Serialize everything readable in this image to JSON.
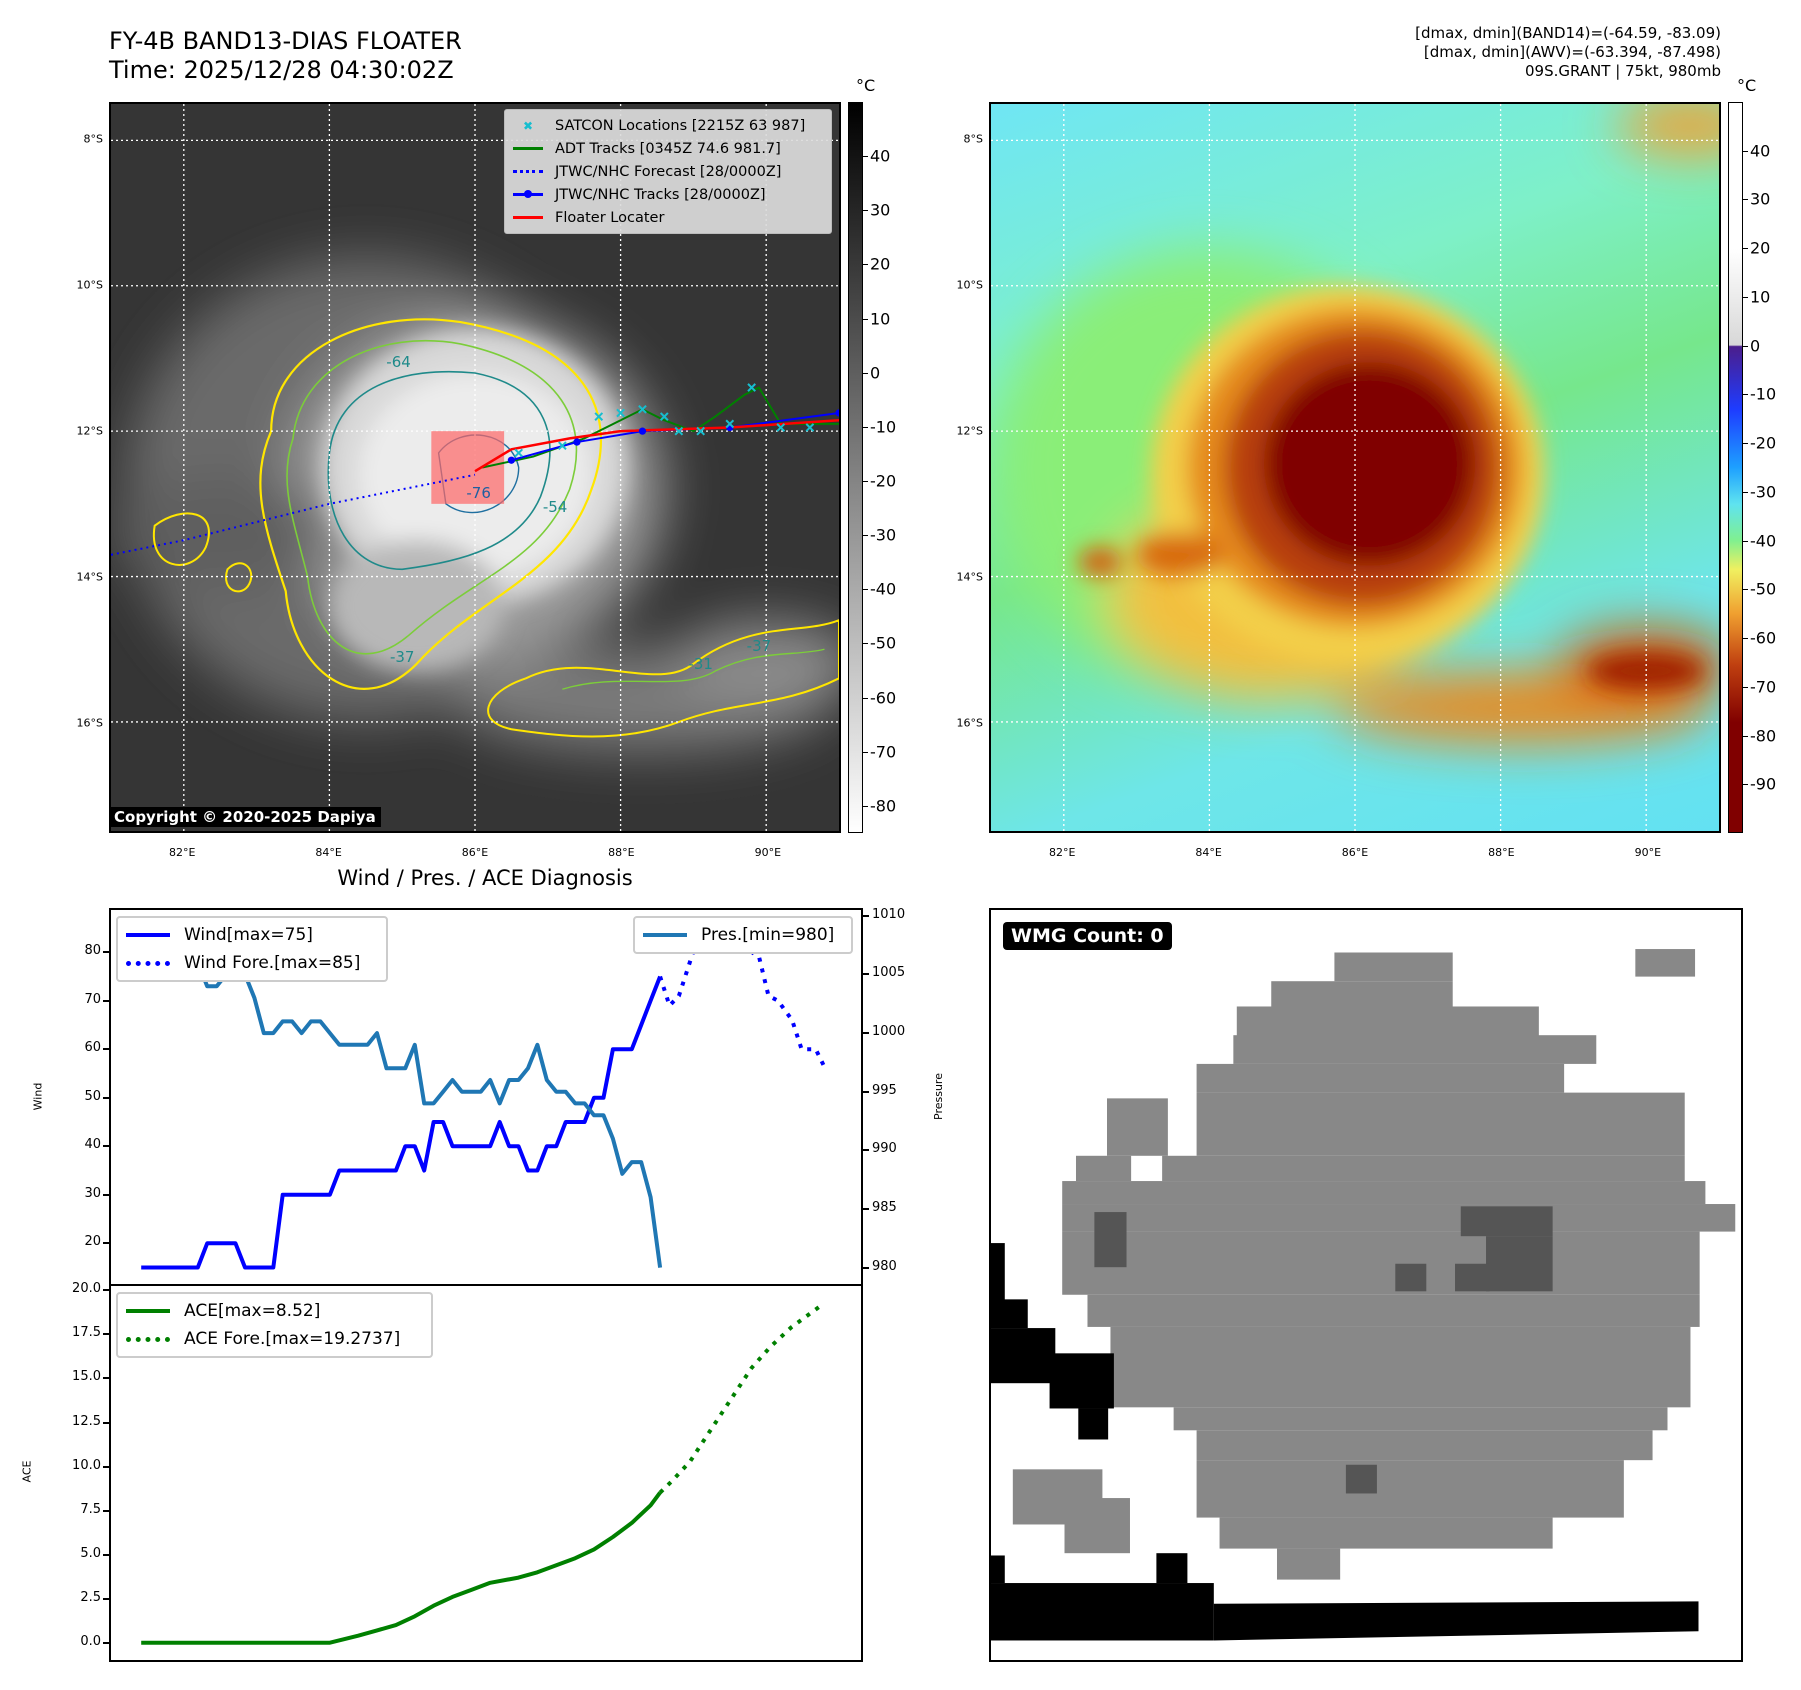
{
  "header": {
    "title_line1": "FY-4B BAND13-DIAS FLOATER",
    "title_line2": "Time: 2025/12/28 04:30:02Z",
    "stats_line1": "[dmax, dmin](BAND14)=(-64.59, -83.09)",
    "stats_line2": "[dmax, dmin](AWV)=(-63.394, -87.498)",
    "stats_line3": "09S.GRANT | 75kt, 980mb"
  },
  "map": {
    "lon_range": [
      81,
      91
    ],
    "lat_range": [
      -7.5,
      -17.5
    ],
    "lat_labels": [
      "8°S",
      "10°S",
      "12°S",
      "14°S",
      "16°S"
    ],
    "lat_values": [
      -8,
      -10,
      -12,
      -14,
      -16
    ],
    "lon_labels": [
      "82°E",
      "84°E",
      "86°E",
      "88°E",
      "90°E"
    ],
    "lon_values": [
      82,
      84,
      86,
      88,
      90
    ],
    "copyright": "Copyright © 2020-2025 Dapiya",
    "unit": "°C",
    "legend": [
      {
        "label": "SATCON Locations [2215Z 63 987]",
        "color": "#17becf",
        "style": "x"
      },
      {
        "label": "ADT Tracks [0345Z 74.6 981.7]",
        "color": "#008000",
        "style": "solid"
      },
      {
        "label": "JTWC/NHC Forecast [28/0000Z]",
        "color": "#0000ff",
        "style": "dotted"
      },
      {
        "label": "JTWC/NHC Tracks [28/0000Z]",
        "color": "#0000ff",
        "style": "marker"
      },
      {
        "label": "Floater Locater",
        "color": "#ff0000",
        "style": "solid"
      }
    ],
    "contour_labels": [
      {
        "text": "-64",
        "lon": 84.95,
        "lat": -11.05
      },
      {
        "text": "-76",
        "lon": 86.05,
        "lat": -12.85
      },
      {
        "text": "-54",
        "lon": 87.1,
        "lat": -13.05
      },
      {
        "text": "-37",
        "lon": 89.9,
        "lat": -14.95
      },
      {
        "text": "-31",
        "lon": 89.1,
        "lat": -15.2
      },
      {
        "text": "-37",
        "lon": 85.0,
        "lat": -15.1
      }
    ],
    "jtwc_forecast": [
      [
        81.0,
        -13.7
      ],
      [
        82,
        -13.5
      ],
      [
        83,
        -13.25
      ],
      [
        84,
        -13.0
      ],
      [
        85,
        -12.8
      ],
      [
        86,
        -12.6
      ]
    ],
    "jtwc_tracks": [
      [
        86.5,
        -12.4
      ],
      [
        87.4,
        -12.15
      ],
      [
        88.3,
        -12.0
      ],
      [
        89.5,
        -11.95
      ],
      [
        91,
        -11.75
      ]
    ],
    "floater_track": [
      [
        86.0,
        -12.55
      ],
      [
        86.5,
        -12.25
      ],
      [
        87.3,
        -12.1
      ],
      [
        88,
        -12.0
      ],
      [
        89.5,
        -11.95
      ],
      [
        91,
        -11.85
      ]
    ],
    "adt_track": [
      [
        86.1,
        -12.5
      ],
      [
        86.8,
        -12.35
      ],
      [
        87.5,
        -12.1
      ],
      [
        88.0,
        -11.85
      ],
      [
        88.3,
        -11.7
      ],
      [
        88.6,
        -11.85
      ],
      [
        89.0,
        -12.0
      ],
      [
        89.3,
        -11.8
      ],
      [
        89.7,
        -11.5
      ],
      [
        89.9,
        -11.4
      ],
      [
        90.2,
        -11.9
      ],
      [
        91,
        -11.9
      ]
    ],
    "satcon_points": [
      [
        86.6,
        -12.3
      ],
      [
        87.2,
        -12.2
      ],
      [
        87.7,
        -11.8
      ],
      [
        88.0,
        -11.75
      ],
      [
        88.3,
        -11.7
      ],
      [
        88.6,
        -11.8
      ],
      [
        88.8,
        -12.0
      ],
      [
        89.1,
        -12.0
      ],
      [
        89.5,
        -11.9
      ],
      [
        89.8,
        -11.4
      ],
      [
        90.2,
        -11.95
      ],
      [
        90.6,
        -11.95
      ]
    ],
    "floater_box": {
      "lon": [
        85.4,
        86.4
      ],
      "lat": [
        -12.0,
        -13.0
      ]
    },
    "left_colorbar": {
      "ticks": [
        40,
        30,
        20,
        10,
        0,
        -10,
        -20,
        -30,
        -40,
        -50,
        -60,
        -70,
        -80
      ],
      "range": [
        -85,
        50
      ]
    },
    "right_colorbar": {
      "ticks": [
        40,
        30,
        20,
        10,
        0,
        -10,
        -20,
        -30,
        -40,
        -50,
        -60,
        -70,
        -80,
        -90
      ],
      "range": [
        -100,
        50
      ]
    }
  },
  "chart_data": [
    {
      "type": "line",
      "title": "Wind / Pres. / ACE Diagnosis",
      "ylabel": "Wind",
      "y2label": "Pressure",
      "xlim": [
        -3.2,
        76.3
      ],
      "ylim": [
        11.6,
        88.7
      ],
      "y2lim": [
        978.6,
        1010.5
      ],
      "yticks": [
        20,
        30,
        40,
        50,
        60,
        70,
        80
      ],
      "y2ticks": [
        980,
        985,
        990,
        995,
        1000,
        1005,
        1010
      ],
      "series": [
        {
          "name": "Wind[max=75]",
          "axis": "left",
          "color": "#0000ff",
          "style": "solid",
          "x": [
            0,
            1,
            2,
            3,
            4,
            5,
            6,
            7,
            8,
            9,
            10,
            11,
            12,
            13,
            14,
            15,
            16,
            17,
            18,
            19,
            20,
            21,
            22,
            23,
            24,
            25,
            26,
            27,
            28,
            29,
            30,
            31,
            32,
            33,
            34,
            35,
            36,
            37,
            38,
            39,
            40,
            41,
            42,
            43,
            44,
            45,
            46,
            47,
            48,
            49,
            50,
            51,
            52,
            53,
            54,
            55
          ],
          "y": [
            15,
            15,
            15,
            15,
            15,
            15,
            15,
            20,
            20,
            20,
            20,
            15,
            15,
            15,
            15,
            30,
            30,
            30,
            30,
            30,
            30,
            35,
            35,
            35,
            35,
            35,
            35,
            35,
            40,
            40,
            35,
            45,
            45,
            40,
            40,
            40,
            40,
            40,
            45,
            40,
            40,
            35,
            35,
            40,
            40,
            45,
            45,
            45,
            50,
            50,
            60,
            60,
            60,
            65,
            70,
            75
          ]
        },
        {
          "name": "Wind Fore.[max=85]",
          "axis": "left",
          "color": "#0000ff",
          "style": "dotted",
          "x": [
            55,
            56,
            57,
            58.5,
            60,
            61.5,
            64,
            65.5,
            66.5,
            67.5,
            69,
            70,
            71.5,
            72.5
          ],
          "y": [
            75,
            69,
            71,
            80,
            83,
            85,
            81,
            79,
            71,
            70,
            66,
            60,
            60,
            56
          ]
        },
        {
          "name": "Pres.[min=980]",
          "axis": "right",
          "color": "#1f77b4",
          "style": "solid",
          "x": [
            0,
            1,
            2,
            3,
            4,
            5,
            6,
            7,
            8,
            9,
            10,
            11,
            12,
            13,
            14,
            15,
            16,
            17,
            18,
            19,
            20,
            21,
            22,
            23,
            24,
            25,
            26,
            27,
            28,
            29,
            30,
            31,
            32,
            33,
            34,
            35,
            36,
            37,
            38,
            39,
            40,
            41,
            42,
            43,
            44,
            45,
            46,
            47,
            48,
            49,
            50,
            51,
            52,
            53,
            54,
            55
          ],
          "y": [
            1009,
            1009,
            1006,
            1006,
            1006,
            1006,
            1006,
            1004,
            1004,
            1005,
            1005,
            1005,
            1003,
            1000,
            1000,
            1001,
            1001,
            1000,
            1001,
            1001,
            1000,
            999,
            999,
            999,
            999,
            1000,
            997,
            997,
            997,
            999,
            994,
            994,
            995,
            996,
            995,
            995,
            995,
            996,
            994,
            996,
            996,
            997,
            999,
            996,
            995,
            995,
            994,
            994,
            993,
            993,
            991,
            988,
            989,
            989,
            986,
            980
          ]
        }
      ]
    },
    {
      "type": "line",
      "ylabel": "ACE",
      "xlim": [
        -3.2,
        76.3
      ],
      "ylim": [
        -0.98,
        20.25
      ],
      "yticks": [
        0.0,
        2.5,
        5.0,
        7.5,
        10.0,
        12.5,
        15.0,
        17.5,
        20.0
      ],
      "ytick_labels": [
        "0.0",
        "2.5",
        "5.0",
        "7.5",
        "10.0",
        "12.5",
        "15.0",
        "17.5",
        "20.0"
      ],
      "series": [
        {
          "name": "ACE[max=8.52]",
          "color": "#008000",
          "style": "solid",
          "x": [
            0,
            20,
            23,
            25,
            27,
            29,
            31,
            33,
            35,
            37,
            40,
            42,
            44,
            46,
            48,
            50,
            52,
            54,
            55
          ],
          "y": [
            0,
            0,
            0.4,
            0.7,
            1.0,
            1.5,
            2.1,
            2.6,
            3.0,
            3.4,
            3.7,
            4.0,
            4.4,
            4.8,
            5.3,
            6.0,
            6.8,
            7.8,
            8.52
          ]
        },
        {
          "name": "ACE Fore.[max=19.2737]",
          "color": "#008000",
          "style": "dotted",
          "x": [
            55,
            56.3,
            58.2,
            59.9,
            61.5,
            63.1,
            64.7,
            66.7,
            68.9,
            71.2,
            72.4
          ],
          "y": [
            8.52,
            9.2,
            10.3,
            11.7,
            13.0,
            14.3,
            15.6,
            16.8,
            17.9,
            18.8,
            19.27
          ]
        }
      ]
    }
  ],
  "wmg": {
    "badge": "WMG Count: 0"
  }
}
